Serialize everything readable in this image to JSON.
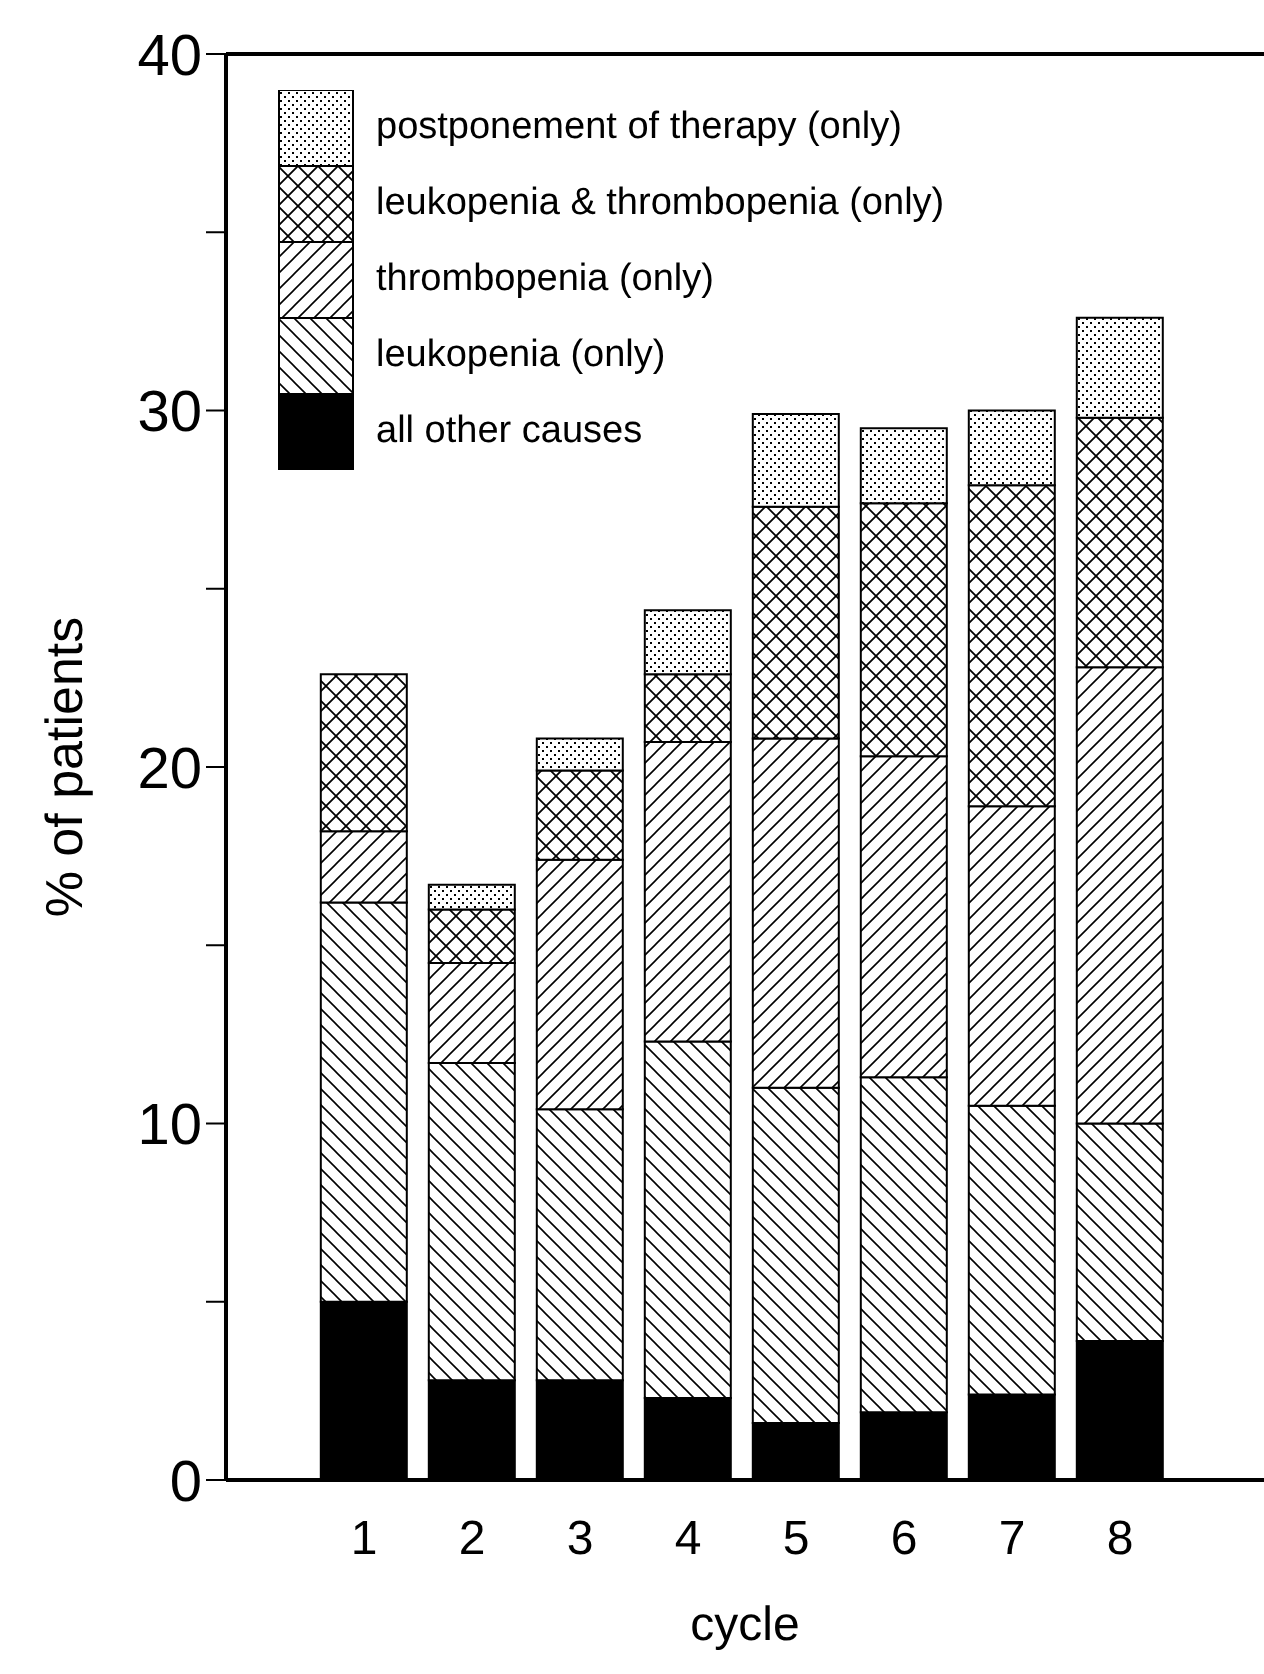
{
  "chart_data": {
    "type": "bar",
    "stacked": true,
    "xlabel": "cycle",
    "ylabel": "% of patients",
    "categories": [
      "1",
      "2",
      "3",
      "4",
      "5",
      "6",
      "7",
      "8"
    ],
    "ylim": [
      0,
      40
    ],
    "yticks": [
      0,
      {
        "value": 5,
        "label": null
      },
      10,
      {
        "value": 15,
        "label": null
      },
      20,
      {
        "value": 25,
        "label": null
      },
      30,
      {
        "value": 35,
        "label": null
      },
      40
    ],
    "legend": "top left",
    "grid": false,
    "series": [
      {
        "name": "all other causes",
        "color": "#000000",
        "values": [
          5.0,
          2.8,
          2.8,
          2.3,
          1.6,
          1.9,
          2.4,
          3.9
        ]
      },
      {
        "name": "leukopenia (only)",
        "color": "#000000",
        "values": [
          11.2,
          8.9,
          7.6,
          10.0,
          9.4,
          9.4,
          8.1,
          6.1
        ]
      },
      {
        "name": "thrombopenia (only)",
        "color": "#000000",
        "values": [
          2.0,
          2.8,
          7.0,
          8.4,
          9.8,
          9.0,
          8.4,
          12.8
        ]
      },
      {
        "name": "leukopenia & thrombopenia (only)",
        "color": "#000000",
        "values": [
          4.4,
          1.5,
          2.5,
          1.9,
          6.5,
          7.1,
          9.0,
          7.0
        ]
      },
      {
        "name": "postponement of therapy (only)",
        "color": "#000000",
        "values": [
          null,
          0.7,
          0.9,
          1.8,
          2.6,
          2.1,
          2.1,
          2.8
        ]
      }
    ]
  }
}
